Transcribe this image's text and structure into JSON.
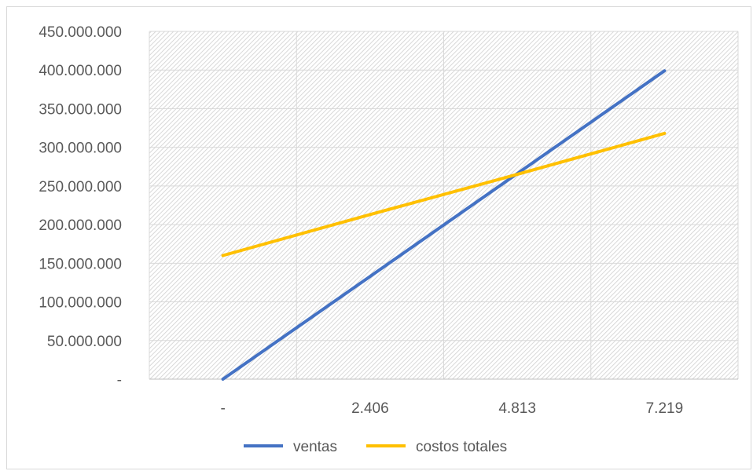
{
  "chart_data": {
    "type": "line",
    "title": "",
    "xlabel": "",
    "ylabel": "",
    "categories": [
      "-",
      "2.406",
      "4.813",
      "7.219"
    ],
    "x": [
      0,
      2406,
      4813,
      7219
    ],
    "ylim": [
      0,
      450000000
    ],
    "y_ticks": [
      0,
      50000000,
      100000000,
      150000000,
      200000000,
      250000000,
      300000000,
      350000000,
      400000000,
      450000000
    ],
    "y_tick_labels": [
      "-",
      "50.000.000",
      "100.000.000",
      "150.000.000",
      "200.000.000",
      "250.000.000",
      "300.000.000",
      "350.000.000",
      "400.000.000",
      "450.000.000"
    ],
    "series": [
      {
        "name": "ventas",
        "color": "#4472c4",
        "values": [
          0,
          133000000,
          266000000,
          399000000
        ]
      },
      {
        "name": "costos totales",
        "color": "#ffc000",
        "values": [
          160000000,
          213000000,
          265000000,
          318000000
        ]
      }
    ],
    "grid": true,
    "plot_background": "hatched",
    "legend": "bottom"
  }
}
